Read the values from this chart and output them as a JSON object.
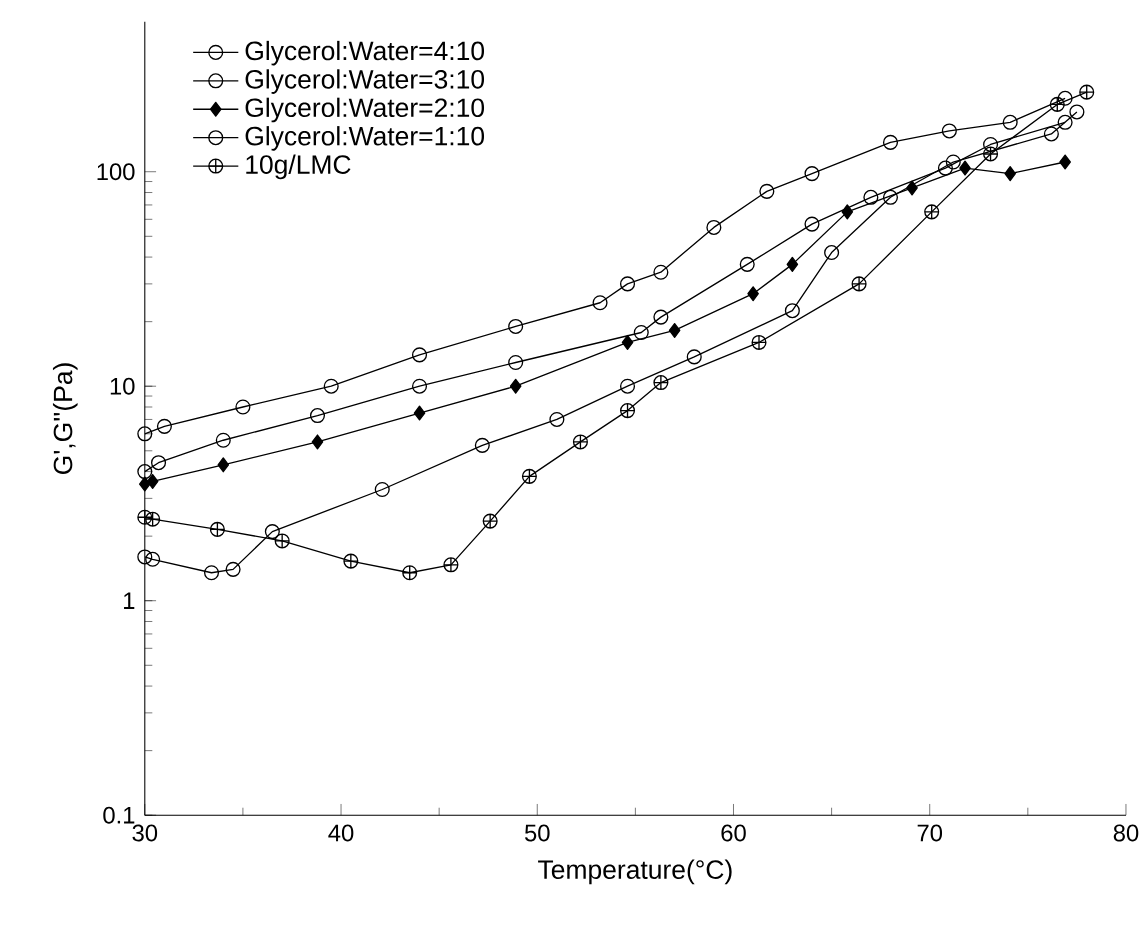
{
  "chart_data": {
    "type": "line",
    "xlabel": "Temperature(°C)",
    "ylabel": "G',G''(Pa)",
    "log": "y",
    "xlim": [
      30,
      80
    ],
    "xticks": [
      30,
      40,
      50,
      60,
      70,
      80
    ],
    "ylim": [
      0.1,
      500
    ],
    "yticks": [
      0.1,
      1,
      10,
      100
    ],
    "grid": false,
    "legend": "top left",
    "line_style": "solid",
    "series": [
      {
        "name": "Glycerol:Water=4:10",
        "color": "#000000",
        "marker": "circle",
        "x": [
          30,
          31,
          35,
          39.5,
          44,
          48.9,
          53.2,
          54.6,
          56.3,
          59,
          61.7,
          64,
          68,
          71,
          74.1,
          76.9
        ],
        "values": [
          6,
          6.5,
          8,
          10,
          14,
          19,
          24.5,
          30,
          34,
          55,
          81,
          98,
          137,
          155,
          170,
          220
        ]
      },
      {
        "name": "Glycerol:Water=3:10",
        "color": "#000000",
        "marker": "circle",
        "x": [
          30,
          30.7,
          34,
          38.8,
          44,
          48.9,
          55.3,
          56.3,
          60.7,
          64,
          67,
          70.8,
          73.1,
          76.9
        ],
        "values": [
          4,
          4.4,
          5.6,
          7.3,
          10,
          12.9,
          17.8,
          21,
          37,
          57,
          76,
          104,
          134,
          170
        ]
      },
      {
        "name": "Glycerol:Water=2:10",
        "color": "#000000",
        "marker": "diamond",
        "x": [
          30,
          30.4,
          34,
          38.8,
          44,
          48.9,
          54.6,
          57,
          61,
          63,
          65.8,
          69.1,
          71.8,
          74.1,
          76.9
        ],
        "values": [
          3.5,
          3.6,
          4.3,
          5.5,
          7.5,
          10,
          16,
          18.2,
          27,
          37,
          65,
          84,
          104,
          98,
          111
        ]
      },
      {
        "name": "Glycerol:Water=1:10",
        "color": "#000000",
        "marker": "circle",
        "x": [
          30,
          30.4,
          33.4,
          34.5,
          36.5,
          42.1,
          47.2,
          51,
          54.6,
          58,
          63,
          65,
          68,
          71.2,
          76.2,
          77.5
        ],
        "values": [
          1.6,
          1.56,
          1.35,
          1.4,
          2.1,
          3.3,
          5.3,
          7,
          10,
          13.7,
          22.5,
          42,
          76,
          111,
          150,
          190
        ]
      },
      {
        "name": "10g/LMC",
        "color": "#000000",
        "marker": "cross",
        "x": [
          30,
          30.4,
          33.7,
          37,
          40.5,
          43.5,
          45.6,
          47.6,
          49.6,
          52.2,
          54.6,
          56.3,
          61.3,
          66.4,
          70.1,
          73.1,
          76.5,
          78
        ],
        "values": [
          2.45,
          2.4,
          2.15,
          1.9,
          1.53,
          1.35,
          1.47,
          2.35,
          3.8,
          5.5,
          7.7,
          10.4,
          16,
          30,
          65,
          121,
          206,
          235
        ]
      }
    ]
  }
}
